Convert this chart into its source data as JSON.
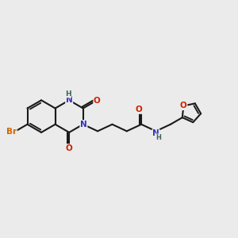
{
  "bg_color": "#ebebeb",
  "bond_color": "#1a1a1a",
  "bond_width": 1.5,
  "dbo": 0.038,
  "atom_colors": {
    "N": "#3333bb",
    "O": "#cc2200",
    "Br": "#cc6600",
    "NH": "#406060",
    "C": "#1a1a1a"
  },
  "font_size": 7.5
}
